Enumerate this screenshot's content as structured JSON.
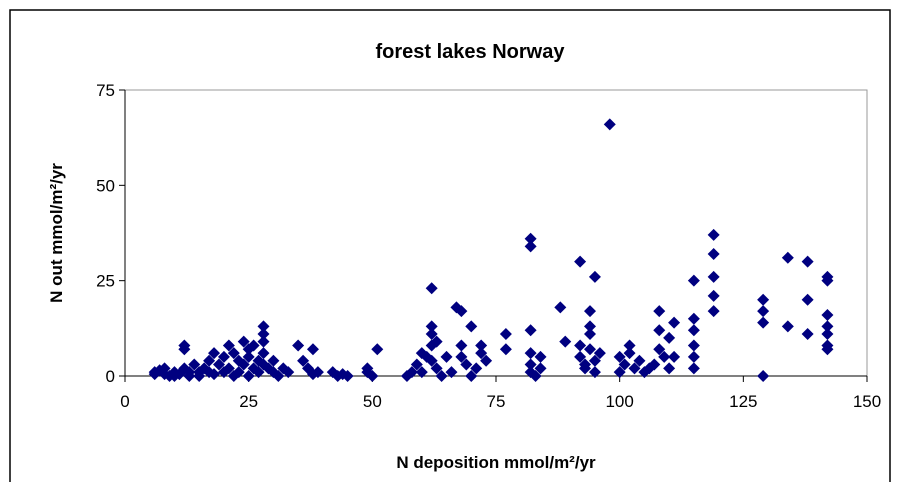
{
  "chart_data": {
    "type": "scatter",
    "title": "forest lakes Norway",
    "x_label": "N deposition mmol/m²/yr",
    "y_label": "N out mmol/m²/yr",
    "color": "#000080",
    "grid": false,
    "xlim": [
      0,
      150
    ],
    "xticks": [
      0,
      25,
      50,
      75,
      100,
      125,
      150
    ],
    "ylim": [
      0,
      75
    ],
    "yticks": [
      0,
      25,
      50,
      75
    ],
    "x": [
      6,
      6,
      7,
      8,
      8,
      9,
      10,
      10,
      11,
      12,
      12,
      12,
      13,
      13,
      14,
      15,
      15,
      16,
      17,
      17,
      18,
      18,
      19,
      20,
      20,
      21,
      21,
      22,
      22,
      23,
      23,
      24,
      24,
      25,
      25,
      25,
      26,
      26,
      27,
      27,
      28,
      28,
      28,
      28,
      28,
      29,
      30,
      30,
      31,
      32,
      33,
      35,
      36,
      37,
      38,
      38,
      39,
      42,
      43,
      44,
      45,
      49,
      49,
      50,
      51,
      57,
      58,
      59,
      60,
      60,
      61,
      62,
      62,
      62,
      62,
      62,
      63,
      63,
      64,
      65,
      66,
      67,
      68,
      68,
      68,
      69,
      70,
      70,
      71,
      72,
      72,
      73,
      77,
      77,
      82,
      82,
      82,
      82,
      82,
      82,
      83,
      84,
      84,
      88,
      89,
      92,
      92,
      92,
      93,
      93,
      94,
      94,
      94,
      94,
      95,
      95,
      95,
      96,
      98,
      100,
      100,
      101,
      102,
      102,
      103,
      104,
      105,
      106,
      107,
      108,
      108,
      108,
      109,
      110,
      110,
      111,
      111,
      115,
      115,
      115,
      115,
      115,
      115,
      119,
      119,
      119,
      119,
      119,
      129,
      129,
      129,
      129,
      134,
      134,
      138,
      138,
      138,
      142,
      142,
      142,
      142,
      142,
      142,
      142
    ],
    "values": [
      1,
      0.5,
      1.5,
      0.5,
      2,
      0,
      1,
      0,
      0.5,
      8,
      7,
      2,
      1,
      0,
      3,
      1,
      0,
      2,
      4,
      1,
      6,
      0.5,
      3,
      5,
      1,
      8,
      2,
      0,
      6,
      4,
      1,
      9,
      3,
      7,
      0,
      5,
      2,
      8,
      4,
      1,
      13,
      11,
      9,
      6,
      3,
      2,
      1,
      4,
      0,
      2,
      1,
      8,
      4,
      2,
      7,
      0.5,
      1,
      1,
      0,
      0.5,
      0,
      1,
      2,
      0,
      7,
      0,
      1,
      3,
      6,
      1,
      5,
      23,
      13,
      11,
      8,
      4,
      2,
      9,
      0,
      5,
      1,
      18,
      17,
      8,
      5,
      3,
      13,
      0,
      2,
      8,
      6,
      4,
      11,
      7,
      36,
      34,
      12,
      6,
      3,
      1,
      0,
      5,
      2,
      18,
      9,
      30,
      8,
      5,
      3,
      2,
      7,
      17,
      13,
      11,
      26,
      4,
      1,
      6,
      66,
      5,
      1,
      3,
      8,
      6,
      2,
      4,
      1,
      2,
      3,
      17,
      12,
      7,
      5,
      2,
      10,
      14,
      5,
      25,
      15,
      12,
      8,
      5,
      2,
      37,
      32,
      26,
      21,
      17,
      20,
      17,
      14,
      0,
      31,
      13,
      30,
      20,
      11,
      26,
      25,
      16,
      13,
      11,
      8,
      7
    ]
  }
}
